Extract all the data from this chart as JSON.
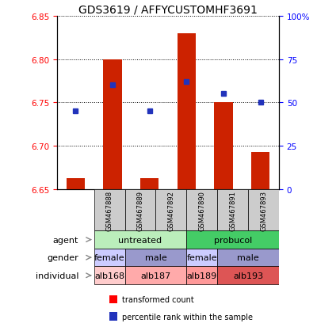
{
  "title": "GDS3619 / AFFYCUSTOMHF3691",
  "samples": [
    "GSM467888",
    "GSM467889",
    "GSM467892",
    "GSM467890",
    "GSM467891",
    "GSM467893"
  ],
  "red_values": [
    6.663,
    6.8,
    6.663,
    6.83,
    6.75,
    6.693
  ],
  "blue_values": [
    45,
    60,
    45,
    62,
    55,
    50
  ],
  "red_base": 6.65,
  "ylim_left": [
    6.65,
    6.85
  ],
  "ylim_right": [
    0,
    100
  ],
  "yticks_left": [
    6.65,
    6.7,
    6.75,
    6.8,
    6.85
  ],
  "yticks_right": [
    0,
    25,
    50,
    75,
    100
  ],
  "bar_color": "#cc2200",
  "dot_color": "#2233bb",
  "bar_width": 0.5,
  "agent_labels": [
    "untreated",
    "probucol"
  ],
  "agent_spans": [
    3,
    3
  ],
  "agent_colors": [
    "#bbeebb",
    "#44cc66"
  ],
  "gender_labels": [
    "female",
    "male",
    "female",
    "male"
  ],
  "gender_spans": [
    1,
    2,
    1,
    2
  ],
  "gender_colors": [
    "#ccccff",
    "#9999cc",
    "#ccccff",
    "#9999cc"
  ],
  "individual_labels": [
    "alb168",
    "alb187",
    "alb189",
    "alb193"
  ],
  "individual_spans": [
    1,
    2,
    1,
    2
  ],
  "individual_colors": [
    "#ffcccc",
    "#ffaaaa",
    "#ff9999",
    "#dd5555"
  ],
  "row_labels": [
    "agent",
    "gender",
    "individual"
  ],
  "legend_red": "transformed count",
  "legend_blue": "percentile rank within the sample",
  "title_fontsize": 10
}
